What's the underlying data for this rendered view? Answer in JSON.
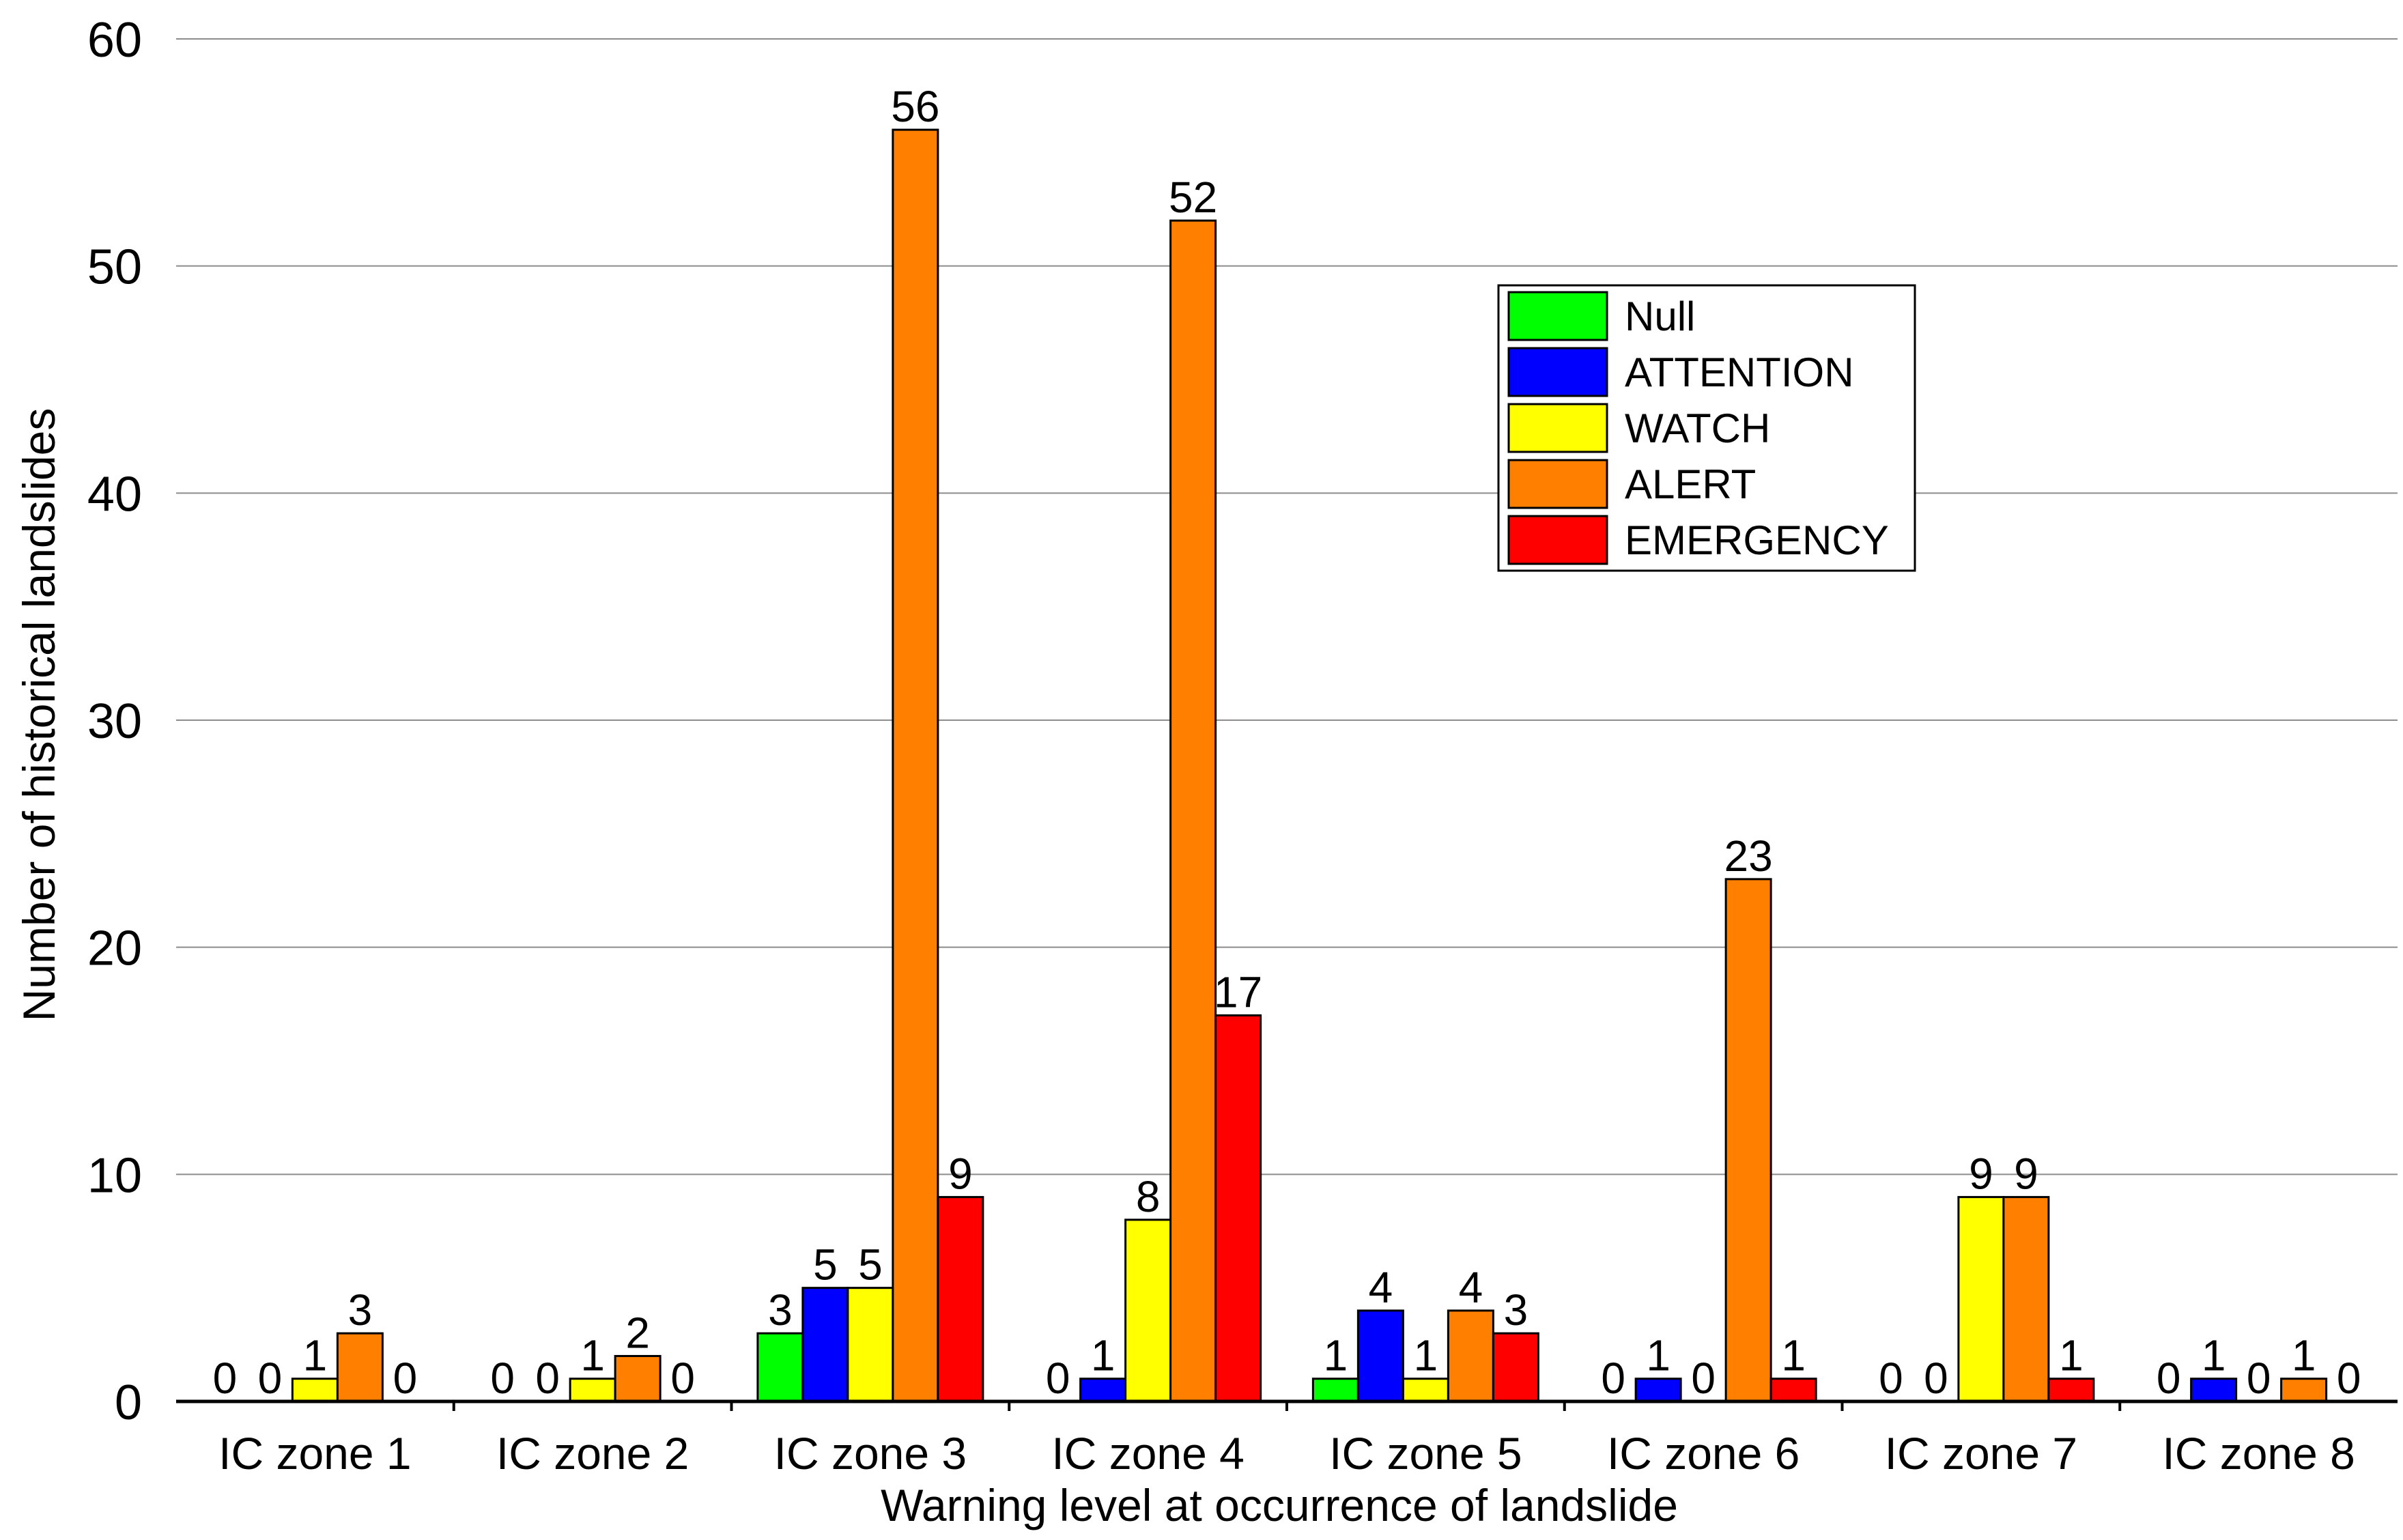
{
  "chart_data": {
    "type": "bar",
    "title": "",
    "xlabel": "Warning level at occurrence of landslide",
    "ylabel": "Number of historical landslides",
    "ylim": [
      0,
      60
    ],
    "yticks": [
      0,
      10,
      20,
      30,
      40,
      50,
      60
    ],
    "grid": true,
    "legend_position": "top-right",
    "categories": [
      "IC zone 1",
      "IC zone 2",
      "IC zone 3",
      "IC zone 4",
      "IC zone 5",
      "IC zone 6",
      "IC zone 7",
      "IC zone 8"
    ],
    "series": [
      {
        "name": "Null",
        "color": "#00ff00",
        "values": [
          0,
          0,
          3,
          0,
          1,
          0,
          0,
          0
        ]
      },
      {
        "name": "ATTENTION",
        "color": "#0000ff",
        "values": [
          0,
          0,
          5,
          1,
          4,
          1,
          0,
          1
        ]
      },
      {
        "name": "WATCH",
        "color": "#ffff00",
        "values": [
          1,
          1,
          5,
          8,
          1,
          0,
          9,
          0
        ]
      },
      {
        "name": "ALERT",
        "color": "#ff8000",
        "values": [
          3,
          2,
          56,
          52,
          4,
          23,
          9,
          1
        ]
      },
      {
        "name": "EMERGENCY",
        "color": "#ff0000",
        "values": [
          0,
          0,
          9,
          17,
          3,
          1,
          1,
          0
        ]
      }
    ]
  }
}
